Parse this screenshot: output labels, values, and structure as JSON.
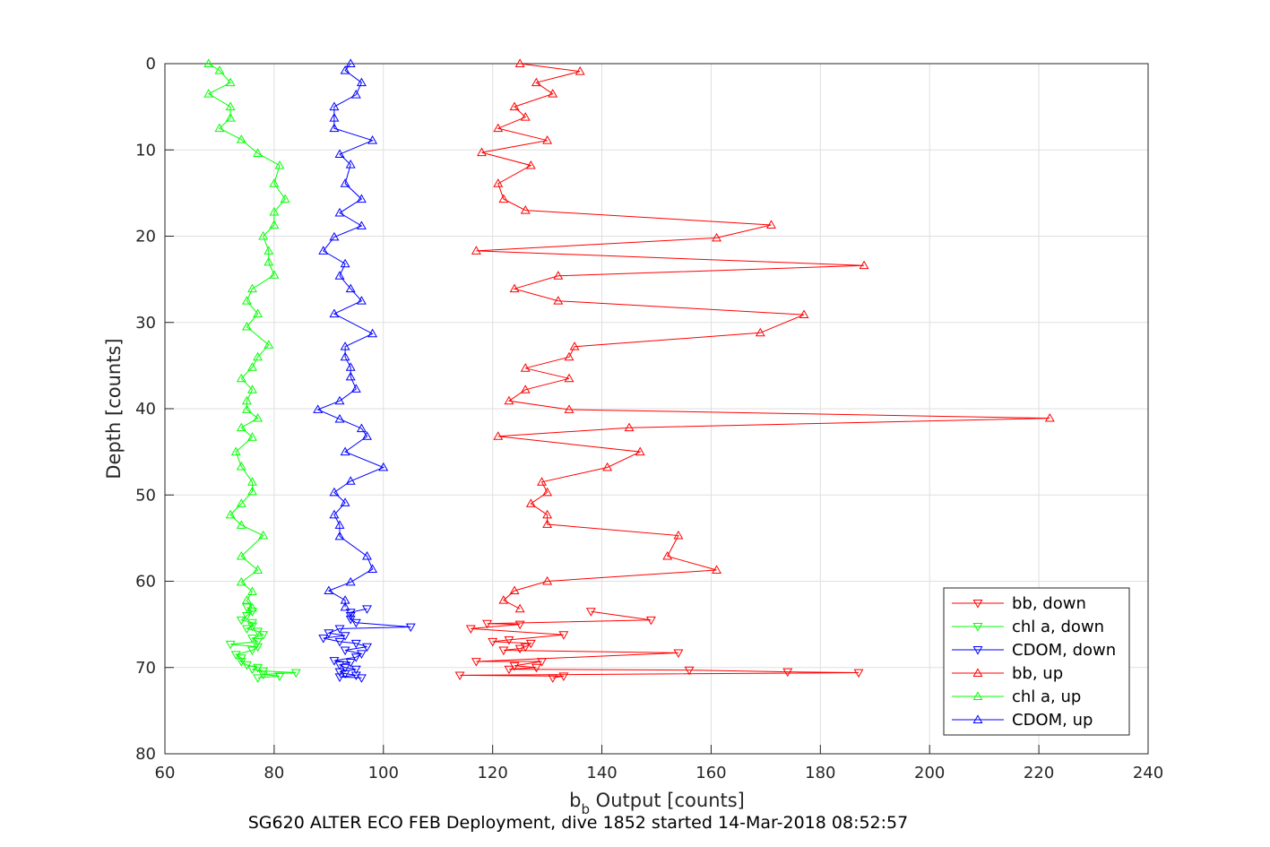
{
  "chart_data": {
    "type": "line",
    "title": "",
    "caption": "SG620 ALTER ECO FEB Deployment, dive 1852 started 14-Mar-2018 08:52:57",
    "xlabel_main": "b",
    "xlabel_sub": "b",
    "xlabel_rest": " Output [counts]",
    "ylabel": "Depth [counts]",
    "xlim": [
      60,
      240
    ],
    "ylim": [
      0,
      80
    ],
    "y_reversed": true,
    "grid": true,
    "xticks": [
      "60",
      "80",
      "100",
      "120",
      "140",
      "160",
      "180",
      "200",
      "220",
      "240"
    ],
    "yticks": [
      "0",
      "10",
      "20",
      "30",
      "40",
      "50",
      "60",
      "70",
      "80"
    ],
    "legend_position": "bottom-right",
    "series": [
      {
        "name": "bb, down",
        "color": "#ff0000",
        "marker": "triangle-down",
        "points": [
          [
            138,
            63.5
          ],
          [
            149,
            64.5
          ],
          [
            119,
            64.9
          ],
          [
            125,
            65
          ],
          [
            116,
            65.5
          ],
          [
            133,
            66.2
          ],
          [
            123,
            66.8
          ],
          [
            120,
            67
          ],
          [
            127,
            67.2
          ],
          [
            126,
            67.6
          ],
          [
            125,
            67.8
          ],
          [
            122,
            68
          ],
          [
            154,
            68.3
          ],
          [
            117,
            69.3
          ],
          [
            129,
            69.3
          ],
          [
            124,
            69.8
          ],
          [
            128,
            70
          ],
          [
            123,
            70.2
          ],
          [
            156,
            70.3
          ],
          [
            174,
            70.5
          ],
          [
            187,
            70.6
          ],
          [
            114,
            70.9
          ],
          [
            133,
            71
          ],
          [
            131,
            71.2
          ]
        ]
      },
      {
        "name": "chl a, down",
        "color": "#00ff00",
        "marker": "triangle-down",
        "points": [
          [
            75,
            63
          ],
          [
            76,
            63.5
          ],
          [
            75,
            64
          ],
          [
            74,
            64.5
          ],
          [
            76,
            64.8
          ],
          [
            76,
            65.2
          ],
          [
            75,
            65.5
          ],
          [
            77,
            65.8
          ],
          [
            78,
            66.2
          ],
          [
            76,
            66.6
          ],
          [
            77,
            67
          ],
          [
            72,
            67.3
          ],
          [
            77,
            67.6
          ],
          [
            76,
            68
          ],
          [
            73,
            68.5
          ],
          [
            74,
            68.9
          ],
          [
            74,
            69.3
          ],
          [
            75,
            69.7
          ],
          [
            77,
            70
          ],
          [
            76,
            70.2
          ],
          [
            78,
            70.4
          ],
          [
            84,
            70.6
          ],
          [
            78,
            70.8
          ],
          [
            81,
            71
          ],
          [
            77,
            71.2
          ]
        ]
      },
      {
        "name": "CDOM, down",
        "color": "#0000ff",
        "marker": "triangle-down",
        "points": [
          [
            97,
            63.2
          ],
          [
            94,
            63.6
          ],
          [
            94,
            64
          ],
          [
            94,
            64.4
          ],
          [
            95,
            64.8
          ],
          [
            105,
            65.3
          ],
          [
            92,
            65.5
          ],
          [
            90,
            66
          ],
          [
            93,
            66.3
          ],
          [
            89,
            66.6
          ],
          [
            92,
            67
          ],
          [
            95,
            67.2
          ],
          [
            97,
            67.6
          ],
          [
            93,
            68
          ],
          [
            96,
            68.4
          ],
          [
            95,
            68.8
          ],
          [
            91,
            69.2
          ],
          [
            94,
            69.4
          ],
          [
            92,
            69.7
          ],
          [
            93,
            70
          ],
          [
            95,
            70.2
          ],
          [
            92,
            70.5
          ],
          [
            93,
            70.7
          ],
          [
            95,
            70.9
          ],
          [
            92,
            71.1
          ],
          [
            96,
            71.2
          ]
        ]
      },
      {
        "name": "bb, up",
        "color": "#ff0000",
        "marker": "triangle-up",
        "points": [
          [
            125,
            0
          ],
          [
            136,
            0.9
          ],
          [
            128,
            2.2
          ],
          [
            131,
            3.5
          ],
          [
            124,
            5
          ],
          [
            126,
            6.2
          ],
          [
            121,
            7.5
          ],
          [
            130,
            8.9
          ],
          [
            118,
            10.3
          ],
          [
            127,
            11.8
          ],
          [
            121,
            13.9
          ],
          [
            122,
            15.7
          ],
          [
            126,
            17
          ],
          [
            171,
            18.7
          ],
          [
            161,
            20.2
          ],
          [
            117,
            21.7
          ],
          [
            188,
            23.4
          ],
          [
            132,
            24.6
          ],
          [
            124,
            26.1
          ],
          [
            132,
            27.5
          ],
          [
            177,
            29.1
          ],
          [
            169,
            31.2
          ],
          [
            135,
            32.8
          ],
          [
            134,
            34
          ],
          [
            126,
            35.3
          ],
          [
            134,
            36.5
          ],
          [
            126,
            37.8
          ],
          [
            123,
            39.1
          ],
          [
            134,
            40.1
          ],
          [
            222,
            41.1
          ],
          [
            145,
            42.2
          ],
          [
            121,
            43.2
          ],
          [
            147,
            45
          ],
          [
            141,
            46.8
          ],
          [
            129,
            48.5
          ],
          [
            130,
            49.7
          ],
          [
            127,
            51
          ],
          [
            130,
            52.3
          ],
          [
            130,
            53.4
          ],
          [
            154,
            54.7
          ],
          [
            152,
            57.1
          ],
          [
            161,
            58.7
          ],
          [
            130,
            60
          ],
          [
            124,
            61.1
          ],
          [
            122,
            62.2
          ],
          [
            125,
            63.2
          ]
        ]
      },
      {
        "name": "chl a, up",
        "color": "#00ff00",
        "marker": "triangle-up",
        "points": [
          [
            68,
            0
          ],
          [
            70,
            0.8
          ],
          [
            72,
            2.2
          ],
          [
            68,
            3.5
          ],
          [
            72,
            5
          ],
          [
            72,
            6.3
          ],
          [
            70,
            7.5
          ],
          [
            74,
            8.8
          ],
          [
            77,
            10.4
          ],
          [
            81,
            11.8
          ],
          [
            80,
            13.9
          ],
          [
            82,
            15.7
          ],
          [
            80,
            17.2
          ],
          [
            80,
            18.7
          ],
          [
            78,
            20
          ],
          [
            79,
            21.7
          ],
          [
            79,
            23
          ],
          [
            80,
            24.5
          ],
          [
            76,
            26.1
          ],
          [
            75,
            27.5
          ],
          [
            77,
            29
          ],
          [
            75,
            30.5
          ],
          [
            79,
            32.6
          ],
          [
            77,
            34
          ],
          [
            76,
            35.2
          ],
          [
            74,
            36.5
          ],
          [
            76,
            37.8
          ],
          [
            75,
            39.1
          ],
          [
            75,
            40.1
          ],
          [
            77,
            41.1
          ],
          [
            74,
            42.2
          ],
          [
            76,
            43.3
          ],
          [
            73,
            45
          ],
          [
            74,
            46.7
          ],
          [
            76,
            48.5
          ],
          [
            76,
            49.6
          ],
          [
            74,
            51
          ],
          [
            72,
            52.3
          ],
          [
            74,
            53.5
          ],
          [
            78,
            54.7
          ],
          [
            74,
            57.1
          ],
          [
            77,
            58.7
          ],
          [
            74,
            60.1
          ],
          [
            76,
            61.2
          ],
          [
            75,
            62.2
          ],
          [
            76,
            63.1
          ]
        ]
      },
      {
        "name": "CDOM, up",
        "color": "#0000ff",
        "marker": "triangle-up",
        "points": [
          [
            94,
            0
          ],
          [
            93,
            0.8
          ],
          [
            96,
            2.2
          ],
          [
            95,
            3.6
          ],
          [
            91,
            5
          ],
          [
            91,
            6.3
          ],
          [
            91,
            7.5
          ],
          [
            98,
            8.9
          ],
          [
            92,
            10.5
          ],
          [
            94,
            11.7
          ],
          [
            93,
            13.9
          ],
          [
            96,
            15.7
          ],
          [
            92,
            17.3
          ],
          [
            96,
            18.8
          ],
          [
            91,
            20.1
          ],
          [
            89,
            21.7
          ],
          [
            93,
            23.2
          ],
          [
            92,
            24.6
          ],
          [
            94,
            26.1
          ],
          [
            96,
            27.5
          ],
          [
            91,
            29
          ],
          [
            98,
            31.3
          ],
          [
            93,
            32.8
          ],
          [
            93,
            34
          ],
          [
            94,
            35.2
          ],
          [
            94,
            36.3
          ],
          [
            95,
            37.7
          ],
          [
            92,
            39.1
          ],
          [
            88,
            40.1
          ],
          [
            92,
            41.2
          ],
          [
            96,
            42.3
          ],
          [
            97,
            43.2
          ],
          [
            93,
            45
          ],
          [
            100,
            46.8
          ],
          [
            94,
            48.4
          ],
          [
            91,
            49.7
          ],
          [
            93,
            50.9
          ],
          [
            91,
            52.3
          ],
          [
            92,
            53.5
          ],
          [
            92,
            54.8
          ],
          [
            97,
            57.1
          ],
          [
            98,
            58.6
          ],
          [
            94,
            60.1
          ],
          [
            90,
            61.1
          ],
          [
            93,
            62.2
          ],
          [
            93,
            63
          ]
        ]
      }
    ]
  }
}
